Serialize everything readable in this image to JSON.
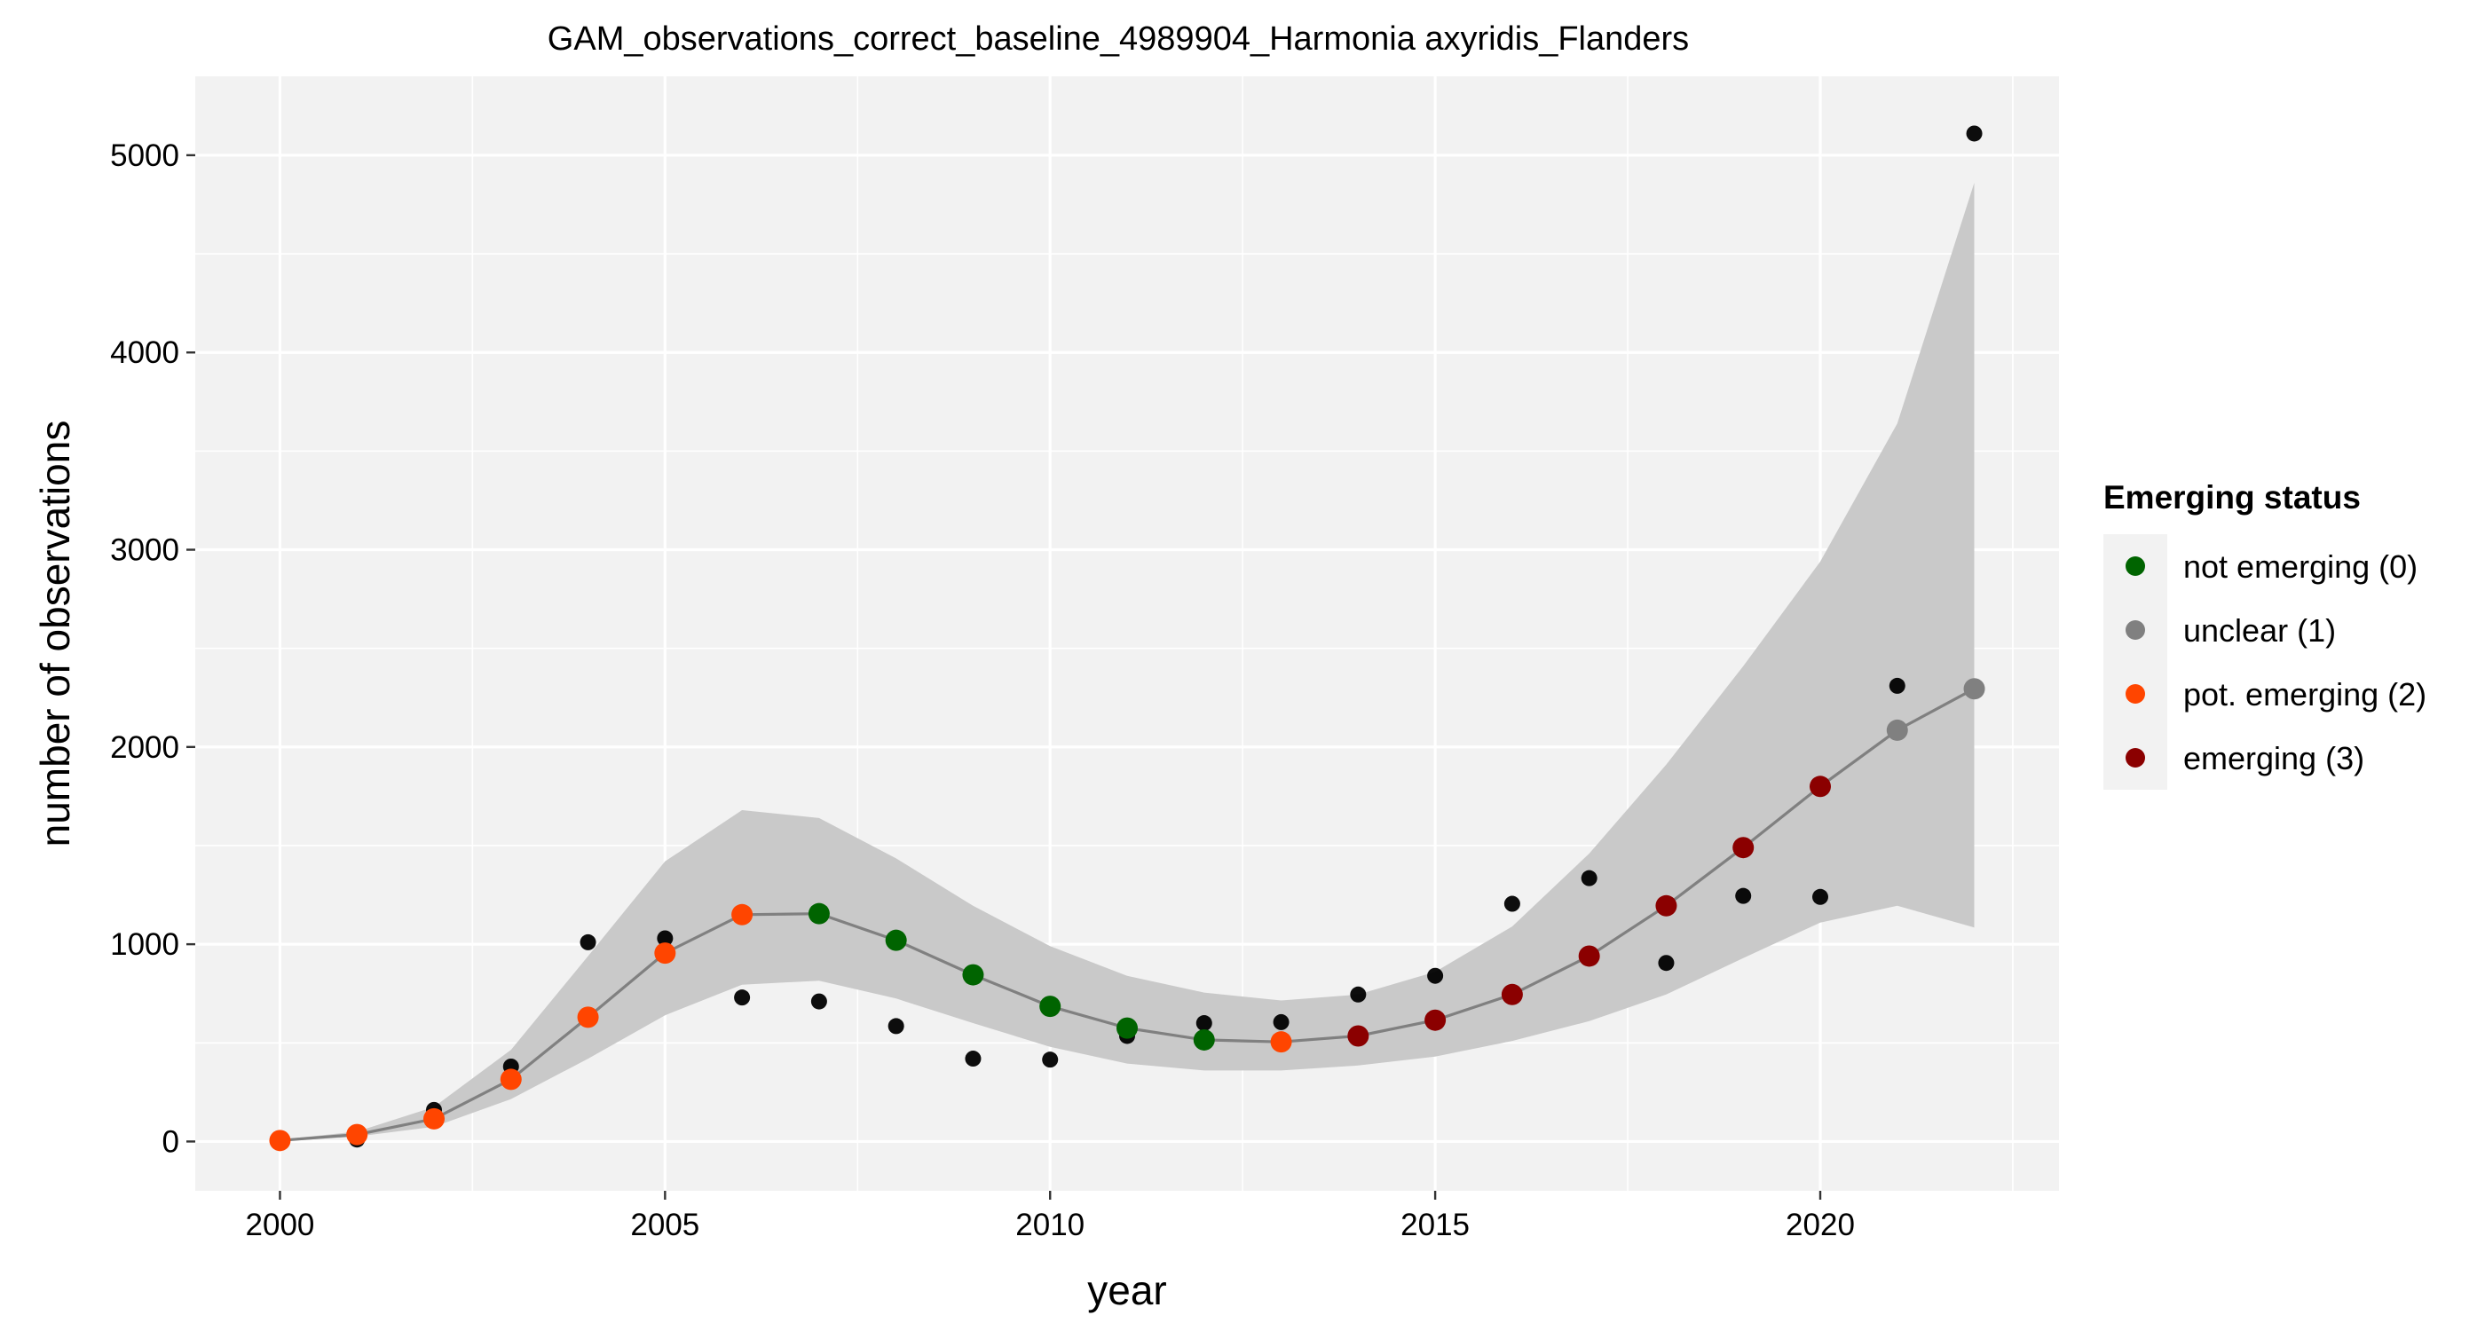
{
  "chart_data": {
    "type": "line",
    "title": "GAM_observations_correct_baseline_4989904_Harmonia axyridis_Flanders",
    "xlabel": "year",
    "ylabel": "number of observations",
    "xlim": [
      1998.9,
      2023.1
    ],
    "ylim": [
      -250,
      5400
    ],
    "x_ticks": [
      2000,
      2005,
      2010,
      2015,
      2020
    ],
    "x_tick_labels": [
      "2000",
      "2005",
      "2010",
      "2015",
      "2020"
    ],
    "y_ticks": [
      0,
      1000,
      2000,
      3000,
      4000,
      5000
    ],
    "y_tick_labels": [
      "0",
      "1000",
      "2000",
      "3000",
      "4000",
      "5000"
    ],
    "grid": true,
    "legend_position": "right",
    "colors": {
      "panel_bg": "#f2f2f2",
      "grid": "#ffffff",
      "ribbon": "#c6c6c6",
      "fit_line": "#808080",
      "observed": "#000000"
    },
    "legend": {
      "title": "Emerging status",
      "items": [
        {
          "label": "not emerging (0)",
          "color": "#006400"
        },
        {
          "label": "unclear (1)",
          "color": "#808080"
        },
        {
          "label": "pot. emerging (2)",
          "color": "#ff4500"
        },
        {
          "label": "emerging (3)",
          "color": "#8b0000"
        }
      ]
    },
    "observed": {
      "x": [
        2000,
        2001,
        2002,
        2003,
        2004,
        2005,
        2006,
        2007,
        2008,
        2009,
        2010,
        2011,
        2012,
        2013,
        2014,
        2015,
        2016,
        2017,
        2018,
        2019,
        2020,
        2021,
        2022
      ],
      "y": [
        5,
        10,
        160,
        380,
        1010,
        1030,
        730,
        710,
        585,
        420,
        415,
        535,
        600,
        605,
        745,
        840,
        1205,
        1335,
        905,
        1245,
        1240,
        2310,
        5110
      ]
    },
    "fit": {
      "x": [
        2000,
        2001,
        2002,
        2003,
        2004,
        2005,
        2006,
        2007,
        2008,
        2009,
        2010,
        2011,
        2012,
        2013,
        2014,
        2015,
        2016,
        2017,
        2018,
        2019,
        2020,
        2021,
        2022
      ],
      "y": [
        5,
        35,
        115,
        315,
        630,
        955,
        1150,
        1155,
        1020,
        845,
        685,
        575,
        515,
        505,
        535,
        615,
        745,
        940,
        1195,
        1490,
        1800,
        2085,
        2295
      ],
      "lower": [
        0,
        25,
        75,
        215,
        420,
        640,
        795,
        815,
        725,
        600,
        480,
        395,
        360,
        360,
        385,
        430,
        510,
        610,
        745,
        930,
        1110,
        1195,
        1085
      ],
      "upper": [
        10,
        50,
        175,
        465,
        940,
        1420,
        1680,
        1640,
        1435,
        1195,
        990,
        840,
        755,
        715,
        745,
        860,
        1090,
        1460,
        1910,
        2410,
        2940,
        3640,
        4860
      ],
      "status": [
        2,
        2,
        2,
        2,
        2,
        2,
        2,
        0,
        0,
        0,
        0,
        0,
        0,
        2,
        3,
        3,
        3,
        3,
        3,
        3,
        3,
        1,
        1
      ]
    }
  }
}
